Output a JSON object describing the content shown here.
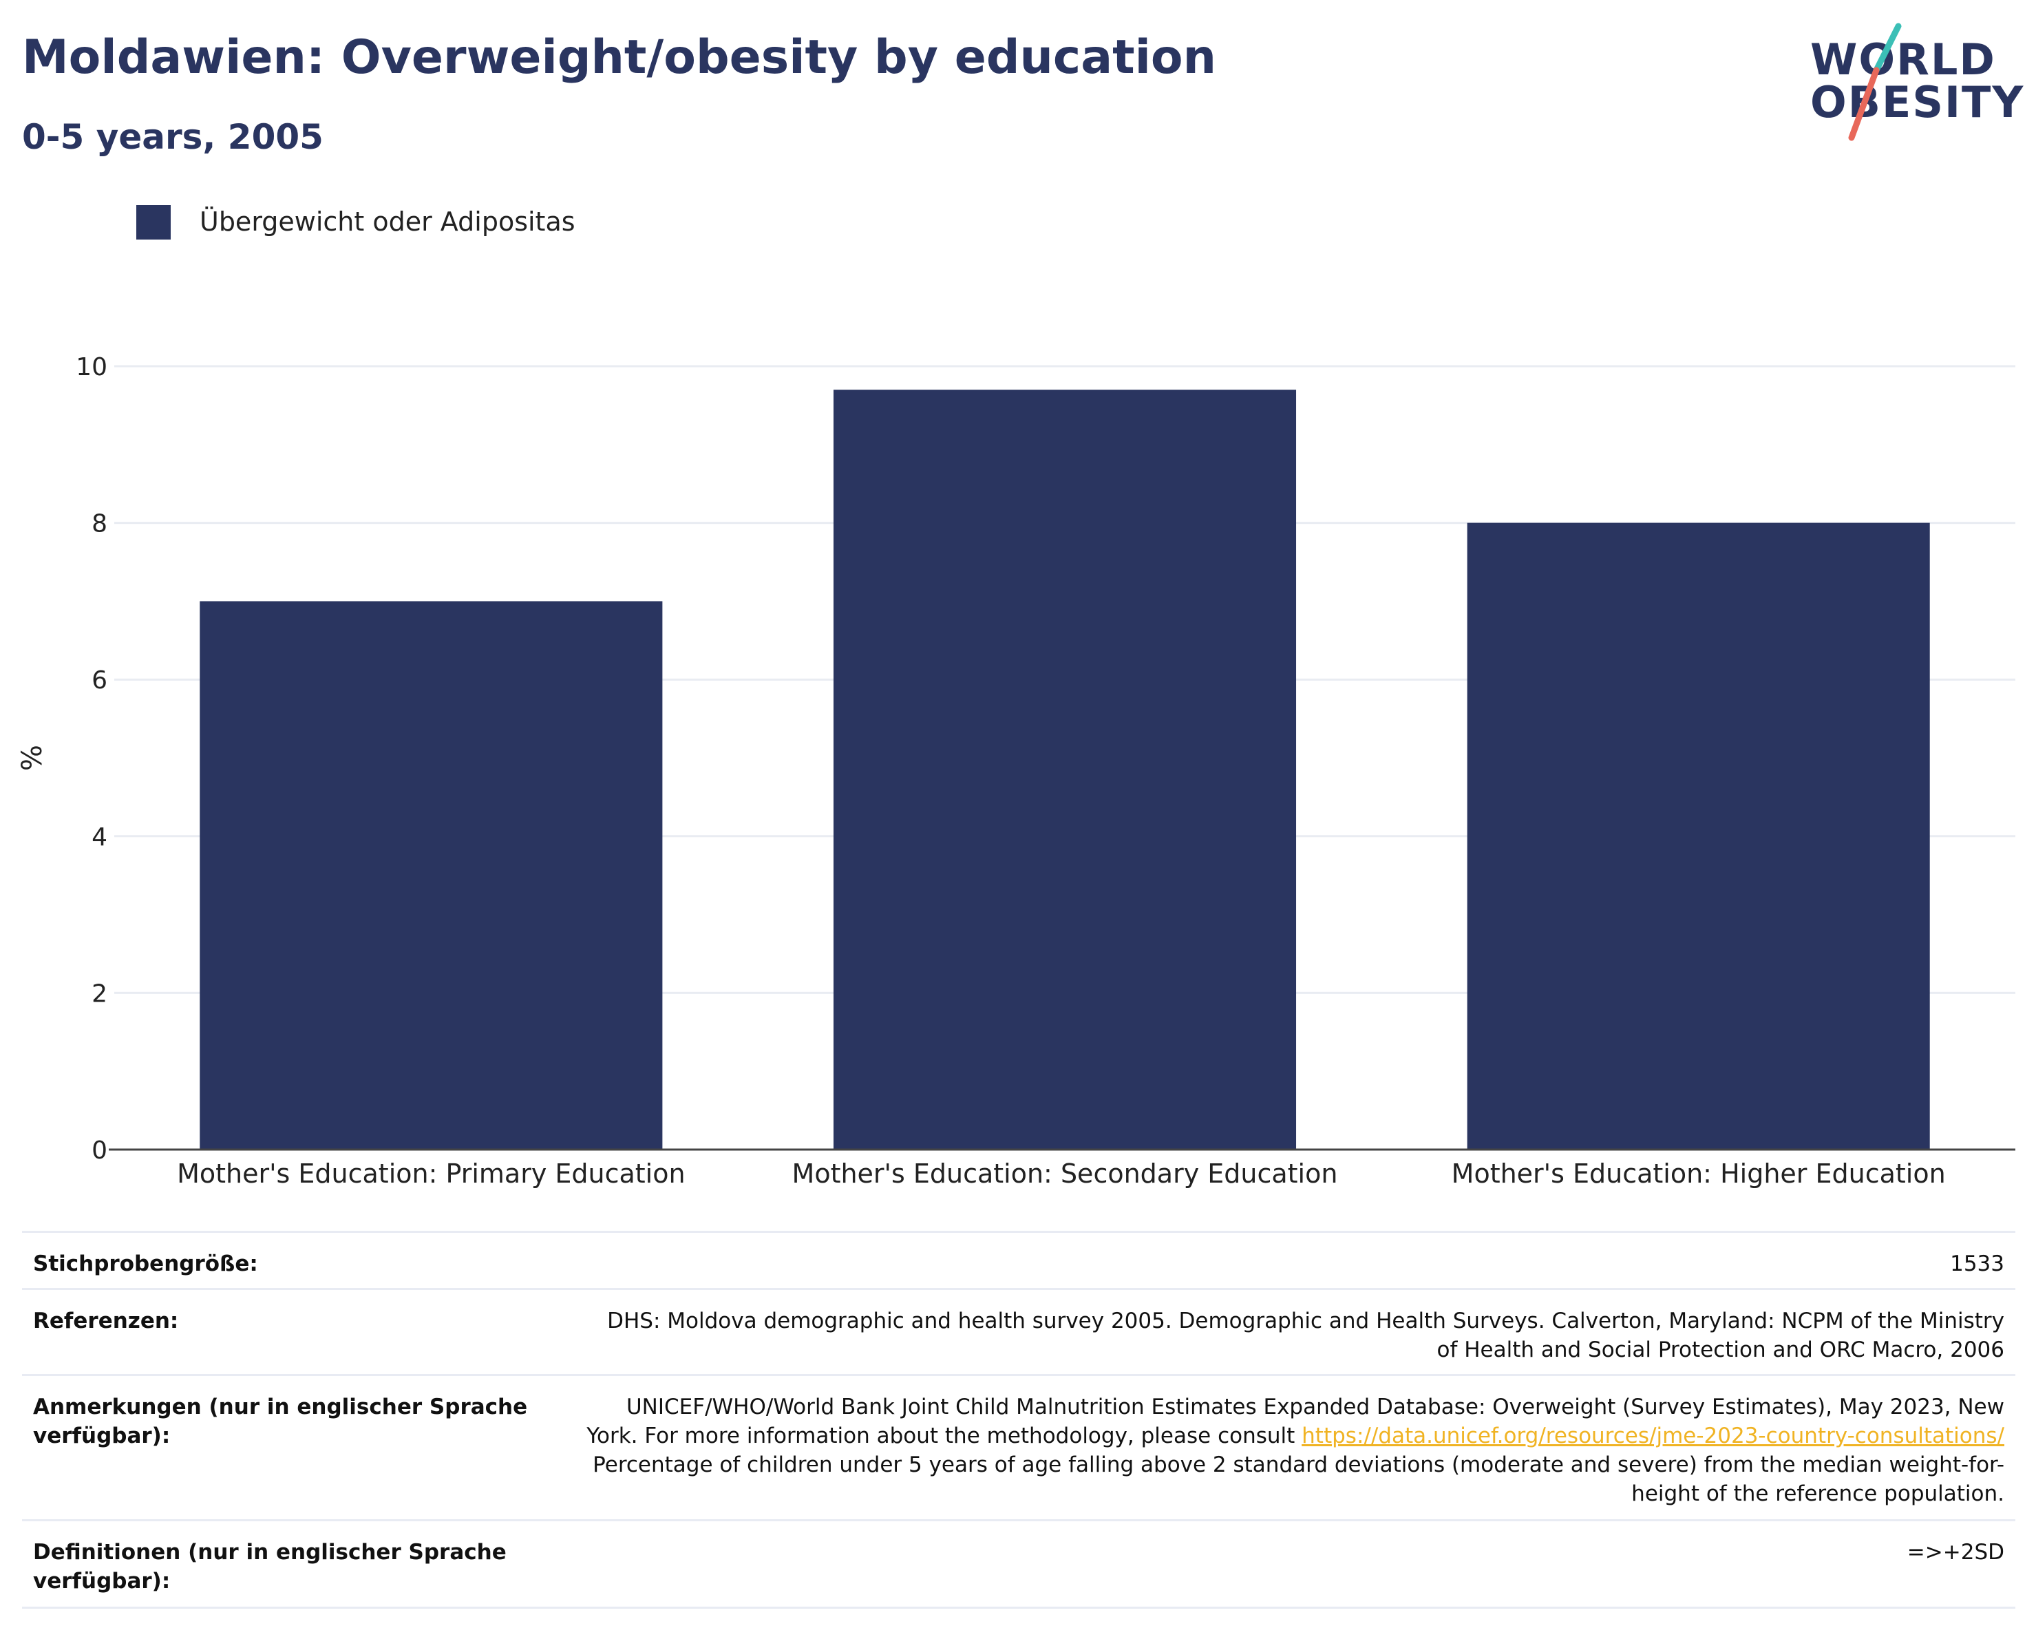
{
  "header": {
    "title": "Moldawien: Overweight/obesity by education",
    "subtitle": "0-5 years, 2005"
  },
  "logo": {
    "line1": "WORLD",
    "line2": "OBESITY",
    "colors": {
      "text": "#2a3560",
      "teal": "#3bbfb6",
      "coral": "#e8685a"
    }
  },
  "legend": {
    "label": "Übergewicht oder Adipositas",
    "color": "#2a3560"
  },
  "chart_data": {
    "type": "bar",
    "categories": [
      "Mother's Education: Primary Education",
      "Mother's Education: Secondary Education",
      "Mother's Education: Higher Education"
    ],
    "series": [
      {
        "name": "Übergewicht oder Adipositas",
        "values": [
          7.0,
          9.7,
          8.0
        ],
        "color": "#2a3560"
      }
    ],
    "ylabel": "%",
    "ylim": [
      0,
      10
    ],
    "yticks": [
      0,
      2,
      4,
      6,
      8,
      10
    ],
    "grid": true,
    "legend_position": "top-left"
  },
  "info": [
    {
      "key": "Stichprobengröße:",
      "value": "1533"
    },
    {
      "key": "Referenzen:",
      "value": "DHS: Moldova demographic and health survey 2005. Demographic and Health Surveys. Calverton, Maryland: NCPM of the Ministry of Health and Social Protection and ORC Macro, 2006"
    },
    {
      "key": "Anmerkungen (nur in englischer Sprache verfügbar):",
      "value_before": "UNICEF/WHO/World Bank Joint Child Malnutrition Estimates Expanded Database: Overweight (Survey Estimates), May 2023, New York. For more information about the methodology, please consult ",
      "link": "https://data.unicef.org/resources/jme-2023-country-consultations/",
      "value_after": " Percentage of children under 5 years of age falling above 2 standard deviations (moderate and severe) from the median weight-for-height of the reference population."
    },
    {
      "key": "Definitionen (nur in englischer Sprache verfügbar):",
      "value": "=>+2SD"
    }
  ]
}
